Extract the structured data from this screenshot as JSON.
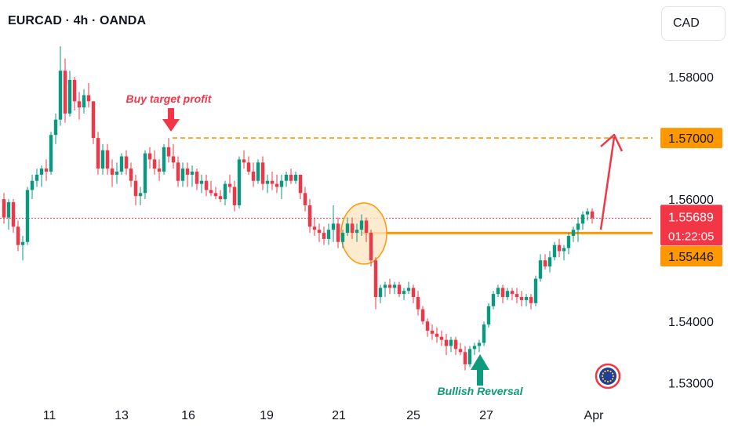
{
  "header": {
    "symbol_title": "EURCAD · 4h · OANDA",
    "currency": "CAD"
  },
  "colors": {
    "up": "#089981",
    "down": "#f23645",
    "orange": "#ff9800",
    "circle_fill": "#fde6c4",
    "arrow_red": "#f23645",
    "reversal_green": "#0e9a7c",
    "current_price_bg": "#f23645",
    "level_bg": "#ff9800"
  },
  "annotations": {
    "buy_target_label": "Buy target profit",
    "bullish_reversal_label": "Bullish Reversal"
  },
  "price_labels": {
    "target": "1.57000",
    "current": "1.55689",
    "countdown": "01:22:05",
    "support": "1.55446"
  },
  "chart_data": {
    "type": "candlestick",
    "ylim": [
      1.5285,
      1.59
    ],
    "y_ticks": [
      "1.58000",
      "1.56000",
      "1.54000",
      "1.53000"
    ],
    "x_ticks": [
      "11",
      "13",
      "16",
      "19",
      "21",
      "25",
      "27",
      "Apr"
    ],
    "levels": {
      "target": 1.57,
      "support": 1.55446,
      "current": 1.55689
    },
    "candles": [
      [
        1.56,
        1.561,
        1.556,
        1.557
      ],
      [
        1.557,
        1.56,
        1.555,
        1.5595
      ],
      [
        1.5595,
        1.56,
        1.5545,
        1.5555
      ],
      [
        1.5555,
        1.5565,
        1.5515,
        1.5525
      ],
      [
        1.5525,
        1.554,
        1.55,
        1.553
      ],
      [
        1.553,
        1.562,
        1.5525,
        1.5615
      ],
      [
        1.5615,
        1.564,
        1.56,
        1.563
      ],
      [
        1.563,
        1.565,
        1.562,
        1.564
      ],
      [
        1.564,
        1.5655,
        1.562,
        1.565
      ],
      [
        1.565,
        1.5665,
        1.563,
        1.5645
      ],
      [
        1.5645,
        1.571,
        1.564,
        1.5705
      ],
      [
        1.5705,
        1.574,
        1.569,
        1.573
      ],
      [
        1.573,
        1.585,
        1.572,
        1.581
      ],
      [
        1.581,
        1.583,
        1.5725,
        1.574
      ],
      [
        1.574,
        1.581,
        1.5735,
        1.5795
      ],
      [
        1.5795,
        1.58,
        1.5745,
        1.576
      ],
      [
        1.576,
        1.5775,
        1.573,
        1.575
      ],
      [
        1.575,
        1.578,
        1.574,
        1.577
      ],
      [
        1.577,
        1.579,
        1.575,
        1.576
      ],
      [
        1.576,
        1.576,
        1.569,
        1.57
      ],
      [
        1.57,
        1.571,
        1.564,
        1.565
      ],
      [
        1.565,
        1.569,
        1.564,
        1.568
      ],
      [
        1.568,
        1.569,
        1.564,
        1.565
      ],
      [
        1.565,
        1.5665,
        1.562,
        1.564
      ],
      [
        1.564,
        1.566,
        1.5625,
        1.5645
      ],
      [
        1.5645,
        1.5675,
        1.564,
        1.567
      ],
      [
        1.567,
        1.568,
        1.564,
        1.565
      ],
      [
        1.565,
        1.566,
        1.562,
        1.563
      ],
      [
        1.563,
        1.564,
        1.559,
        1.5605
      ],
      [
        1.5605,
        1.562,
        1.559,
        1.561
      ],
      [
        1.561,
        1.568,
        1.56,
        1.5675
      ],
      [
        1.5675,
        1.5685,
        1.565,
        1.5665
      ],
      [
        1.5665,
        1.568,
        1.564,
        1.565
      ],
      [
        1.565,
        1.5665,
        1.563,
        1.5645
      ],
      [
        1.5645,
        1.569,
        1.564,
        1.5685
      ],
      [
        1.5685,
        1.57,
        1.566,
        1.567
      ],
      [
        1.567,
        1.569,
        1.565,
        1.566
      ],
      [
        1.566,
        1.567,
        1.562,
        1.563
      ],
      [
        1.563,
        1.566,
        1.562,
        1.565
      ],
      [
        1.565,
        1.566,
        1.562,
        1.564
      ],
      [
        1.564,
        1.5655,
        1.562,
        1.5645
      ],
      [
        1.5645,
        1.565,
        1.5615,
        1.5625
      ],
      [
        1.5625,
        1.564,
        1.561,
        1.563
      ],
      [
        1.563,
        1.564,
        1.5605,
        1.5615
      ],
      [
        1.5615,
        1.563,
        1.5605,
        1.561
      ],
      [
        1.561,
        1.562,
        1.56,
        1.5605
      ],
      [
        1.5605,
        1.5615,
        1.5595,
        1.56
      ],
      [
        1.56,
        1.563,
        1.559,
        1.5625
      ],
      [
        1.5625,
        1.564,
        1.561,
        1.562
      ],
      [
        1.562,
        1.563,
        1.558,
        1.559
      ],
      [
        1.559,
        1.567,
        1.5585,
        1.5665
      ],
      [
        1.5665,
        1.568,
        1.565,
        1.566
      ],
      [
        1.566,
        1.567,
        1.564,
        1.5645
      ],
      [
        1.5645,
        1.566,
        1.562,
        1.563
      ],
      [
        1.563,
        1.5665,
        1.5625,
        1.566
      ],
      [
        1.566,
        1.567,
        1.5615,
        1.5625
      ],
      [
        1.5625,
        1.564,
        1.561,
        1.563
      ],
      [
        1.563,
        1.5645,
        1.5615,
        1.5625
      ],
      [
        1.5625,
        1.564,
        1.561,
        1.562
      ],
      [
        1.562,
        1.564,
        1.56,
        1.563
      ],
      [
        1.563,
        1.5645,
        1.562,
        1.564
      ],
      [
        1.564,
        1.565,
        1.5625,
        1.563
      ],
      [
        1.563,
        1.5645,
        1.5625,
        1.564
      ],
      [
        1.564,
        1.564,
        1.56,
        1.561
      ],
      [
        1.561,
        1.562,
        1.558,
        1.559
      ],
      [
        1.559,
        1.56,
        1.5545,
        1.5555
      ],
      [
        1.5555,
        1.557,
        1.554,
        1.555
      ],
      [
        1.555,
        1.556,
        1.553,
        1.5545
      ],
      [
        1.5545,
        1.5555,
        1.5525,
        1.5535
      ],
      [
        1.5535,
        1.556,
        1.5525,
        1.555
      ],
      [
        1.555,
        1.559,
        1.553,
        1.556
      ],
      [
        1.556,
        1.557,
        1.552,
        1.553
      ],
      [
        1.553,
        1.555,
        1.552,
        1.5545
      ],
      [
        1.5545,
        1.557,
        1.554,
        1.556
      ],
      [
        1.556,
        1.557,
        1.5535,
        1.5545
      ],
      [
        1.5545,
        1.556,
        1.553,
        1.555
      ],
      [
        1.555,
        1.5575,
        1.554,
        1.5565
      ],
      [
        1.5565,
        1.557,
        1.553,
        1.5545
      ],
      [
        1.5545,
        1.555,
        1.549,
        1.55
      ],
      [
        1.55,
        1.5505,
        1.542,
        1.544
      ],
      [
        1.544,
        1.546,
        1.543,
        1.5455
      ],
      [
        1.5455,
        1.5465,
        1.544,
        1.546
      ],
      [
        1.546,
        1.547,
        1.5445,
        1.5455
      ],
      [
        1.5455,
        1.5465,
        1.5445,
        1.546
      ],
      [
        1.546,
        1.5465,
        1.544,
        1.5445
      ],
      [
        1.5445,
        1.5455,
        1.5435,
        1.545
      ],
      [
        1.545,
        1.5465,
        1.5445,
        1.5455
      ],
      [
        1.5455,
        1.546,
        1.543,
        1.544
      ],
      [
        1.544,
        1.545,
        1.541,
        1.542
      ],
      [
        1.542,
        1.5425,
        1.5395,
        1.54
      ],
      [
        1.54,
        1.5405,
        1.5375,
        1.5385
      ],
      [
        1.5385,
        1.5395,
        1.537,
        1.538
      ],
      [
        1.538,
        1.539,
        1.5365,
        1.5375
      ],
      [
        1.5375,
        1.5385,
        1.536,
        1.537
      ],
      [
        1.537,
        1.538,
        1.5345,
        1.536
      ],
      [
        1.536,
        1.5375,
        1.535,
        1.537
      ],
      [
        1.537,
        1.5375,
        1.5345,
        1.5355
      ],
      [
        1.5355,
        1.5365,
        1.5345,
        1.535
      ],
      [
        1.535,
        1.536,
        1.532,
        1.533
      ],
      [
        1.533,
        1.536,
        1.5325,
        1.5355
      ],
      [
        1.5355,
        1.5365,
        1.5345,
        1.536
      ],
      [
        1.536,
        1.537,
        1.535,
        1.5365
      ],
      [
        1.5365,
        1.54,
        1.536,
        1.5395
      ],
      [
        1.5395,
        1.543,
        1.539,
        1.5425
      ],
      [
        1.5425,
        1.545,
        1.542,
        1.5445
      ],
      [
        1.5445,
        1.546,
        1.544,
        1.5455
      ],
      [
        1.5455,
        1.546,
        1.543,
        1.544
      ],
      [
        1.544,
        1.5455,
        1.5435,
        1.545
      ],
      [
        1.545,
        1.5455,
        1.5435,
        1.5445
      ],
      [
        1.5445,
        1.5455,
        1.543,
        1.544
      ],
      [
        1.544,
        1.545,
        1.5425,
        1.5435
      ],
      [
        1.5435,
        1.5445,
        1.5425,
        1.544
      ],
      [
        1.544,
        1.5445,
        1.542,
        1.543
      ],
      [
        1.543,
        1.5475,
        1.5425,
        1.547
      ],
      [
        1.547,
        1.551,
        1.5465,
        1.55
      ],
      [
        1.55,
        1.551,
        1.5485,
        1.549
      ],
      [
        1.549,
        1.5515,
        1.548,
        1.5505
      ],
      [
        1.5505,
        1.553,
        1.55,
        1.5525
      ],
      [
        1.5525,
        1.5535,
        1.5505,
        1.5515
      ],
      [
        1.5515,
        1.5525,
        1.55,
        1.552
      ],
      [
        1.552,
        1.5545,
        1.551,
        1.554
      ],
      [
        1.554,
        1.5555,
        1.553,
        1.555
      ],
      [
        1.555,
        1.557,
        1.553,
        1.556
      ],
      [
        1.556,
        1.558,
        1.555,
        1.5575
      ],
      [
        1.5575,
        1.5585,
        1.5565,
        1.558
      ],
      [
        1.558,
        1.5585,
        1.556,
        1.5569
      ]
    ]
  }
}
